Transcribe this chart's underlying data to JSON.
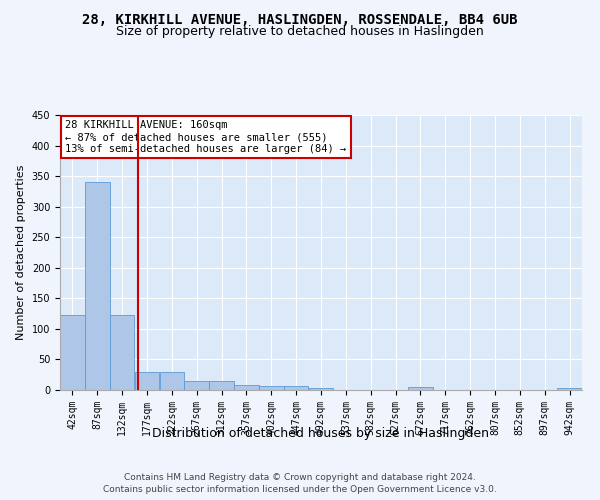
{
  "title": "28, KIRKHILL AVENUE, HASLINGDEN, ROSSENDALE, BB4 6UB",
  "subtitle": "Size of property relative to detached houses in Haslingden",
  "xlabel": "Distribution of detached houses by size in Haslingden",
  "ylabel": "Number of detached properties",
  "footnote1": "Contains HM Land Registry data © Crown copyright and database right 2024.",
  "footnote2": "Contains public sector information licensed under the Open Government Licence v3.0.",
  "annotation_line1": "28 KIRKHILL AVENUE: 160sqm",
  "annotation_line2": "← 87% of detached houses are smaller (555)",
  "annotation_line3": "13% of semi-detached houses are larger (84) →",
  "bins": [
    42,
    87,
    132,
    177,
    222,
    267,
    312,
    357,
    402,
    447,
    492,
    537,
    582,
    627,
    672,
    717,
    762,
    807,
    852,
    897,
    942
  ],
  "values": [
    122,
    340,
    122,
    30,
    30,
    15,
    15,
    8,
    6,
    6,
    3,
    0,
    0,
    0,
    5,
    0,
    0,
    0,
    0,
    0,
    3
  ],
  "bar_color": "#aec6e8",
  "bar_edge_color": "#5b9bd5",
  "vline_x": 160,
  "vline_color": "#cc0000",
  "ylim": [
    0,
    450
  ],
  "yticks": [
    0,
    50,
    100,
    150,
    200,
    250,
    300,
    350,
    400,
    450
  ],
  "bg_color": "#dce9f8",
  "grid_color": "#ffffff",
  "fig_bg_color": "#f0f4fc",
  "annotation_box_color": "#cc0000",
  "title_fontsize": 10,
  "subtitle_fontsize": 9,
  "xlabel_fontsize": 9,
  "ylabel_fontsize": 8,
  "tick_fontsize": 7,
  "annot_fontsize": 7.5,
  "footnote_fontsize": 6.5
}
